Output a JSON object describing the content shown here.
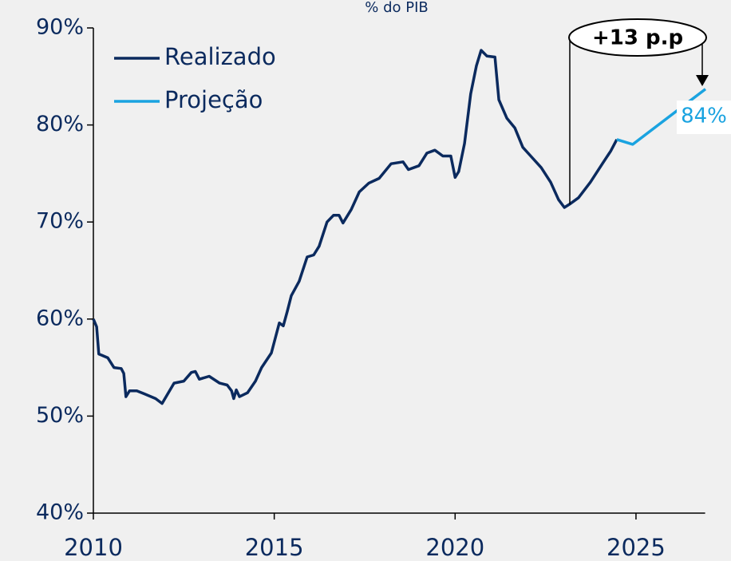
{
  "chart_data": {
    "type": "line",
    "title": "% do PIB",
    "xlim": [
      2010,
      2027
    ],
    "xticks": [
      2010,
      2015,
      2020,
      2025
    ],
    "ylim": [
      40,
      90
    ],
    "yticks": [
      {
        "value": 40,
        "label": "40%"
      },
      {
        "value": 50,
        "label": "50%"
      },
      {
        "value": 60,
        "label": "60%"
      },
      {
        "value": 70,
        "label": "70%"
      },
      {
        "value": 80,
        "label": "80%"
      },
      {
        "value": 90,
        "label": "90%"
      }
    ],
    "grid": false,
    "legend": "upper left",
    "annotations": [
      "+13 p.p",
      "84%"
    ],
    "series": [
      {
        "name": "Realizado",
        "color": "#0b2a5e",
        "x": [
          2010.0,
          2010.09,
          2010.15,
          2010.4,
          2010.57,
          2010.77,
          2010.84,
          2010.9,
          2011.0,
          2011.2,
          2011.4,
          2011.72,
          2011.9,
          2012.23,
          2012.5,
          2012.71,
          2012.82,
          2012.93,
          2013.2,
          2013.49,
          2013.7,
          2013.82,
          2013.88,
          2013.95,
          2014.04,
          2014.26,
          2014.48,
          2014.65,
          2014.92,
          2015.14,
          2015.25,
          2015.36,
          2015.47,
          2015.69,
          2015.91,
          2016.09,
          2016.24,
          2016.46,
          2016.64,
          2016.79,
          2016.9,
          2017.13,
          2017.35,
          2017.61,
          2017.9,
          2018.23,
          2018.56,
          2018.71,
          2019.0,
          2019.22,
          2019.44,
          2019.66,
          2019.88,
          2020.0,
          2020.1,
          2020.26,
          2020.43,
          2020.59,
          2020.72,
          2020.88,
          2021.1,
          2021.21,
          2021.43,
          2021.65,
          2021.87,
          2022.09,
          2022.38,
          2022.64,
          2022.86,
          2023.02,
          2023.19,
          2023.41,
          2023.74,
          2024.07,
          2024.3,
          2024.47
        ],
        "values": [
          60.0,
          59.2,
          56.4,
          56.0,
          55.0,
          54.9,
          54.4,
          52.0,
          52.6,
          52.6,
          52.3,
          51.8,
          51.3,
          53.4,
          53.6,
          54.5,
          54.6,
          53.8,
          54.1,
          53.4,
          53.2,
          52.6,
          51.8,
          52.7,
          52.0,
          52.4,
          53.6,
          55.0,
          56.5,
          59.6,
          59.3,
          60.8,
          62.4,
          63.9,
          66.4,
          66.6,
          67.5,
          70.0,
          70.7,
          70.7,
          69.9,
          71.3,
          73.1,
          74.0,
          74.5,
          76.0,
          76.2,
          75.4,
          75.8,
          77.1,
          77.4,
          76.8,
          76.8,
          74.6,
          75.2,
          78.1,
          83.2,
          86.1,
          87.7,
          87.1,
          87.0,
          82.6,
          80.7,
          79.7,
          77.7,
          76.8,
          75.6,
          74.1,
          72.3,
          71.5,
          71.9,
          72.5,
          74.1,
          76.0,
          77.3,
          78.5
        ]
      },
      {
        "name": "Projeção",
        "color": "#1aa3e0",
        "x": [
          2024.47,
          2024.91,
          2026.92
        ],
        "values": [
          78.5,
          78.0,
          83.7
        ]
      }
    ]
  }
}
